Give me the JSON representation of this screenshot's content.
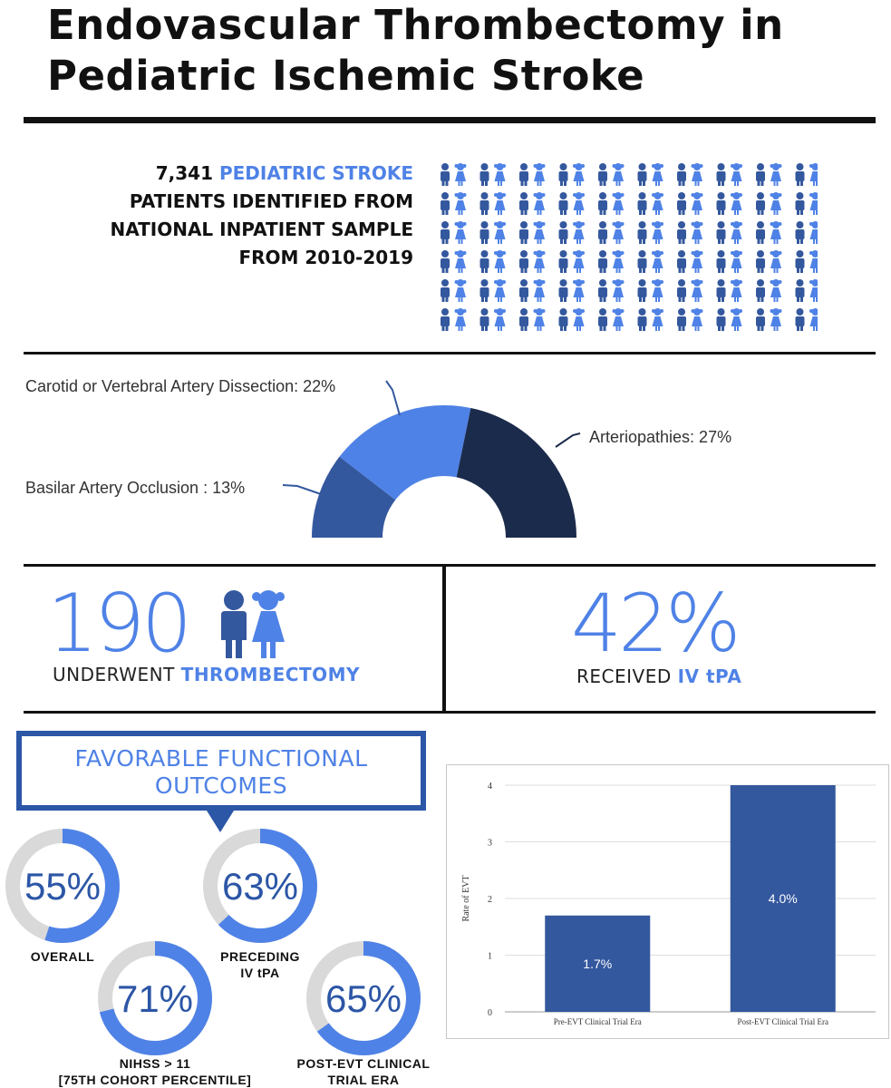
{
  "title": {
    "line1": "Endovascular Thrombectomy in",
    "line2": "Pediatric Ischemic Stroke"
  },
  "headline": {
    "count": "7,341",
    "accent": "PEDIATRIC STROKE",
    "line2": "PATIENTS IDENTIFIED FROM",
    "line3": "NATIONAL INPATIENT SAMPLE",
    "line4": "FROM 2010-2019"
  },
  "people_grid": {
    "rows": 6,
    "columns": 10,
    "icon": "boy-girl-pair-icon"
  },
  "etiology": {
    "segments": [
      {
        "label": "Basilar Artery Occlusion : 13%",
        "percent": 13,
        "color": "#34589e"
      },
      {
        "label": "Carotid or Vertebral Artery Dissection: 22%",
        "percent": 22,
        "color": "#4f82e6"
      },
      {
        "label": "Arteriopathies: 27%",
        "percent": 27,
        "color": "#1b2b4b"
      }
    ]
  },
  "stats": {
    "thrombectomy_number": "190",
    "thrombectomy_prefix": "UNDERWENT ",
    "thrombectomy_accent": "THROMBECTOMY",
    "tpa_number": "42%",
    "tpa_prefix": "RECEIVED ",
    "tpa_accent": "IV tPA"
  },
  "outcomes": {
    "callout_line1": "FAVORABLE FUNCTIONAL",
    "callout_line2": "OUTCOMES",
    "rings": [
      {
        "value": "55%",
        "fraction": 0.55,
        "label_line1": "OVERALL",
        "label_line2": ""
      },
      {
        "value": "63%",
        "fraction": 0.63,
        "label_line1": "PRECEDING",
        "label_line2": "IV tPA"
      },
      {
        "value": "71%",
        "fraction": 0.71,
        "label_line1": "NIHSS > 11",
        "label_line2": "[75TH COHORT PERCENTILE]"
      },
      {
        "value": "65%",
        "fraction": 0.65,
        "label_line1": "POST-EVT CLINICAL",
        "label_line2": "TRIAL ERA"
      }
    ],
    "colors": {
      "fill": "#4f82e6",
      "track": "#d9d9d9",
      "text": "#2c56a6"
    }
  },
  "chart_data": {
    "type": "bar",
    "categories": [
      "Pre-EVT Clinical Trial Era",
      "Post-EVT Clinical Trial Era"
    ],
    "values": [
      1.7,
      4.0
    ],
    "data_labels": [
      "1.7%",
      "4.0%"
    ],
    "ylabel": "Rate of EVT",
    "ylim": [
      0,
      4
    ],
    "yticks": [
      0,
      1,
      2,
      3,
      4
    ],
    "grid": true,
    "bar_color": "#34589e"
  }
}
